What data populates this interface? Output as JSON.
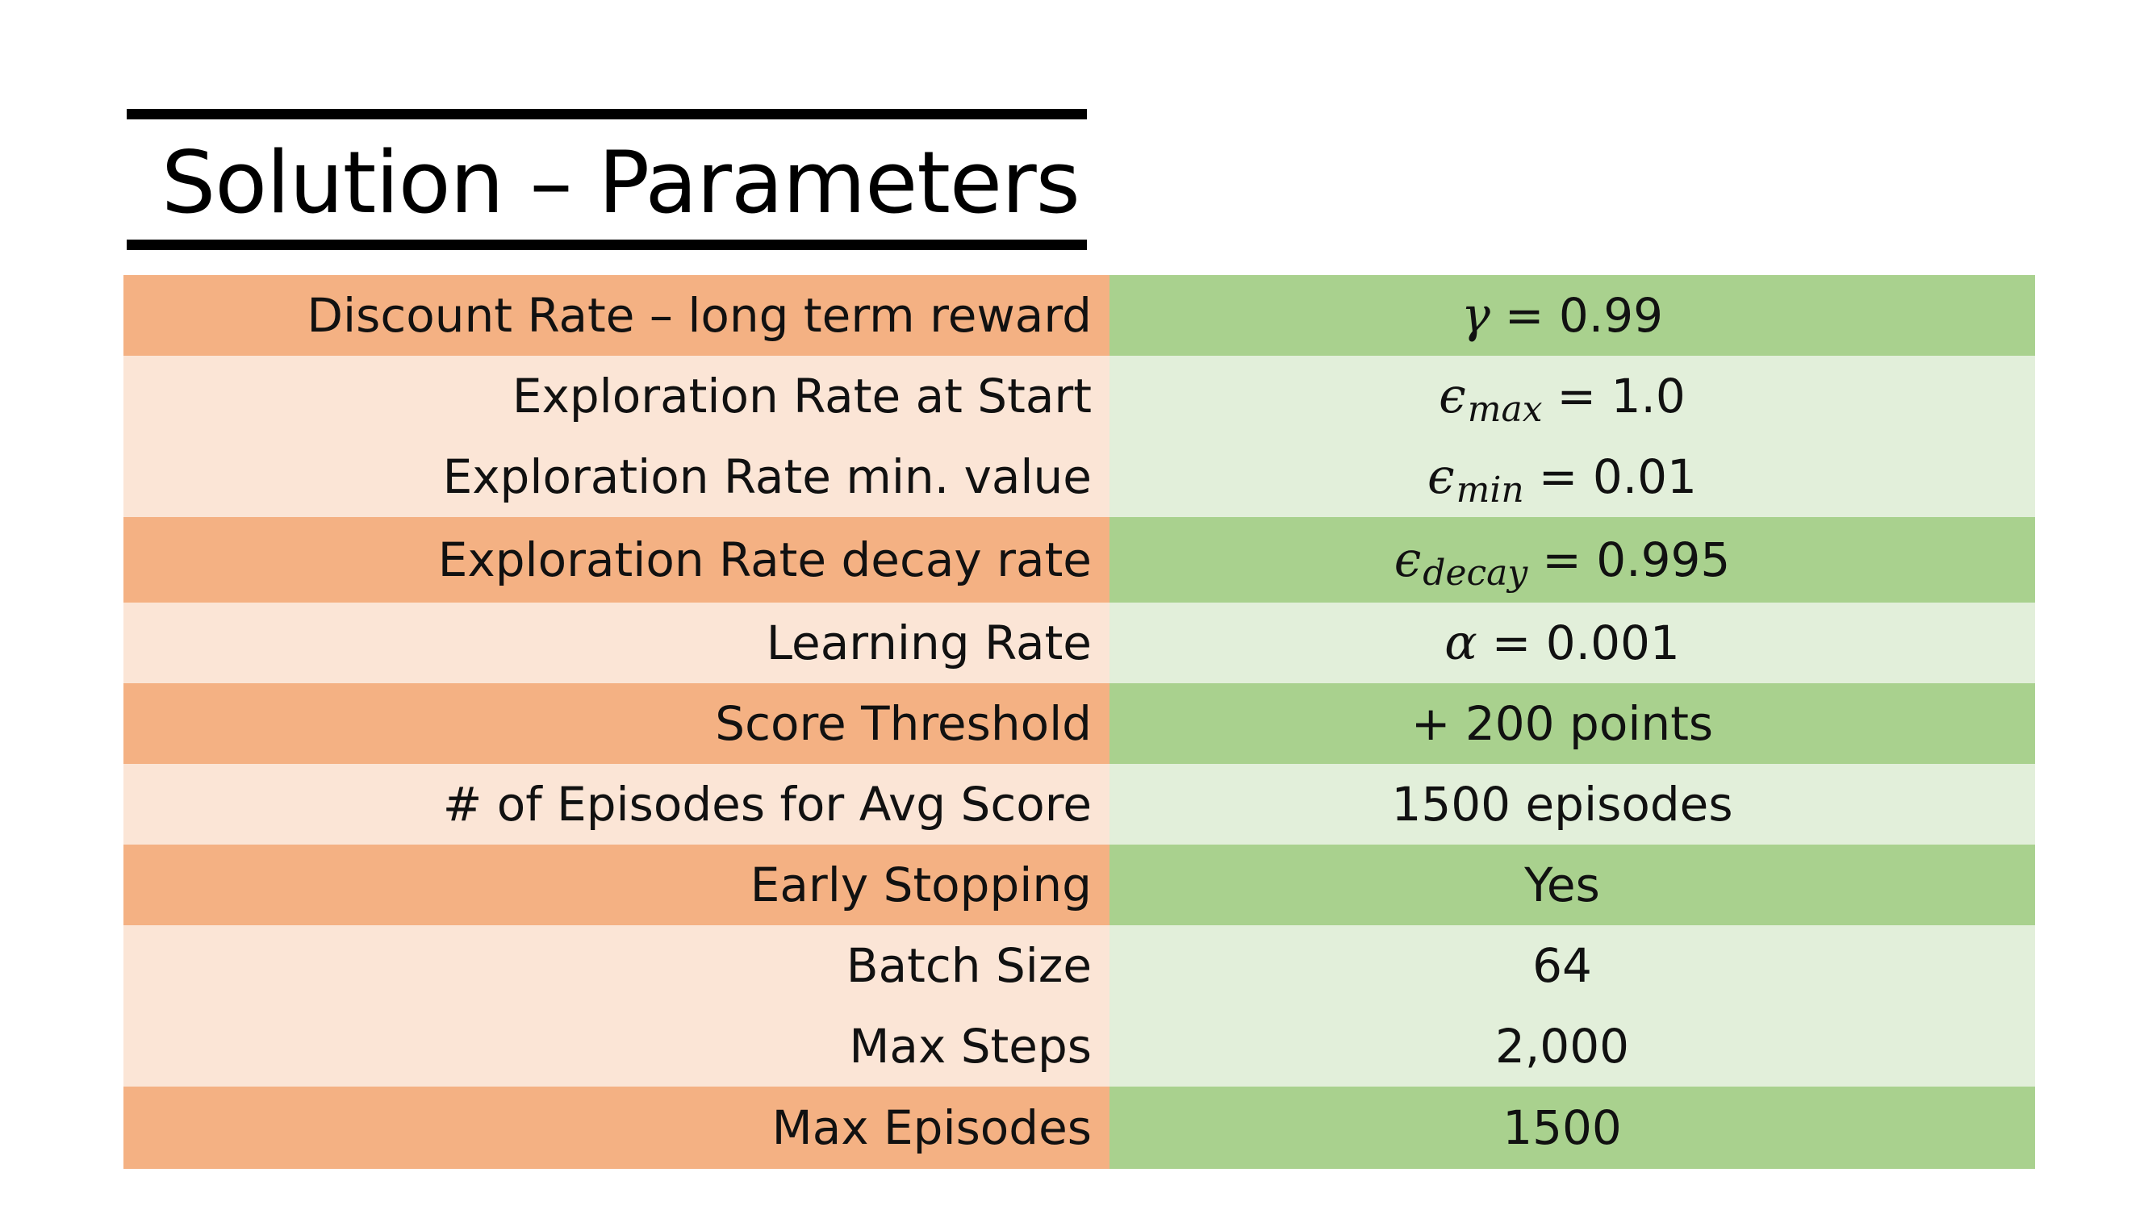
{
  "title": "Solution – Parameters",
  "rows": [
    {
      "label": "Discount Rate – long term reward",
      "symbol": "γ",
      "subscript": "",
      "value": "= 0.99",
      "shade": "dark"
    },
    {
      "label": "Exploration Rate at Start",
      "symbol": "ϵ",
      "subscript": "max",
      "value": "= 1.0",
      "shade": "light"
    },
    {
      "label": "Exploration Rate min. value",
      "symbol": "ϵ",
      "subscript": "min",
      "value": "= 0.01",
      "shade": "light"
    },
    {
      "label": "Exploration Rate decay rate",
      "symbol": "ϵ",
      "subscript": "decay",
      "value": "= 0.995",
      "shade": "dark"
    },
    {
      "label": "Learning Rate",
      "symbol": "α",
      "subscript": "",
      "value": "= 0.001",
      "shade": "light"
    },
    {
      "label": "Score Threshold",
      "symbol": "",
      "subscript": "",
      "value": "+ 200 points",
      "shade": "dark"
    },
    {
      "label": "# of Episodes for Avg Score",
      "symbol": "",
      "subscript": "",
      "value": "1500 episodes",
      "shade": "light"
    },
    {
      "label": "Early Stopping",
      "symbol": "",
      "subscript": "",
      "value": "Yes",
      "shade": "dark"
    },
    {
      "label": "Batch Size",
      "symbol": "",
      "subscript": "",
      "value": "64",
      "shade": "light"
    },
    {
      "label": "Max Steps",
      "symbol": "",
      "subscript": "",
      "value": "2,000",
      "shade": "light"
    },
    {
      "label": "Max Episodes",
      "symbol": "",
      "subscript": "",
      "value": "1500",
      "shade": "dark"
    }
  ],
  "colors": {
    "label_dark": "#f4b183",
    "label_light": "#fbe5d6",
    "value_dark": "#a9d18e",
    "value_light": "#e2efda"
  }
}
